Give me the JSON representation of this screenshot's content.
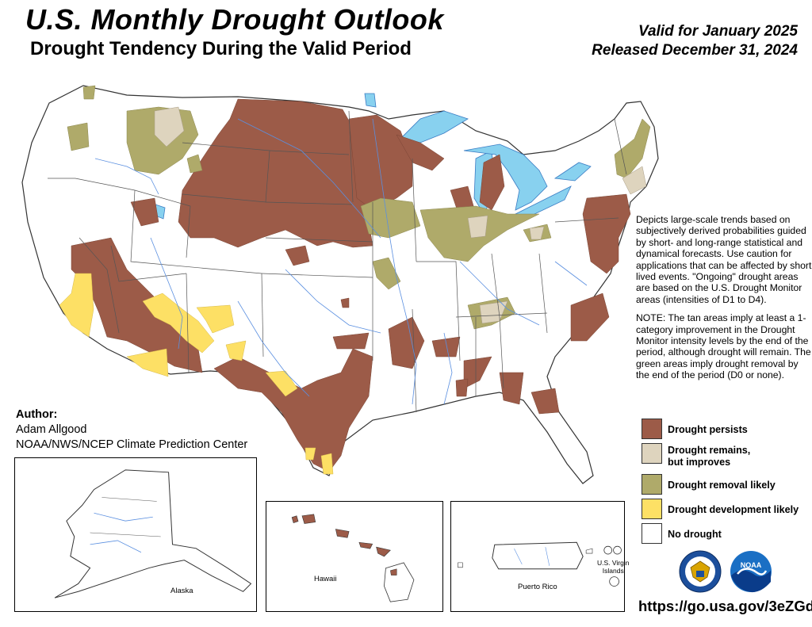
{
  "header": {
    "title": "U.S. Monthly Drought Outlook",
    "subtitle": "Drought Tendency During the Valid Period",
    "valid_line": "Valid for January 2025",
    "released_line": "Released December 31, 2024"
  },
  "description": {
    "paragraph1": "Depicts large-scale trends based on subjectively derived probabilities guided by short- and long-range statistical and dynamical forecasts. Use caution for applications that can be affected by short lived events. \"Ongoing\" drought areas are based on the U.S. Drought Monitor areas (intensities of D1 to D4).",
    "paragraph2": "NOTE: The tan areas imply at least a 1-category improvement in the Drought Monitor intensity levels by the end of the period, although drought will remain. The green areas imply drought removal by the end of the period (D0 or none)."
  },
  "author": {
    "label": "Author:",
    "name": "Adam Allgood",
    "org": "NOAA/NWS/NCEP Climate Prediction Center"
  },
  "legend": [
    {
      "label": "Drought persists",
      "color": "#9c5b48"
    },
    {
      "label": "Drought remains,",
      "label2": "but improves",
      "color": "#ded4be"
    },
    {
      "label": "Drought removal likely",
      "color": "#afaa6a"
    },
    {
      "label": "Drought development likely",
      "color": "#fde065"
    },
    {
      "label": "No drought",
      "color": "#ffffff"
    }
  ],
  "insets": {
    "alaska": "Alaska",
    "hawaii": "Hawaii",
    "puerto_rico": "Puerto Rico",
    "usvi_line1": "U.S. Virgin",
    "usvi_line2": "Islands"
  },
  "logos": {
    "noaa_text": "NOAA"
  },
  "footer": {
    "url": "https://go.usa.gov/3eZGd"
  },
  "colors": {
    "persists": "#9c5b48",
    "improves": "#ded4be",
    "removal": "#afaa6a",
    "development": "#fde065",
    "water": "#88d1ef",
    "rivers": "#5a8fe0",
    "borders": "#555555"
  }
}
